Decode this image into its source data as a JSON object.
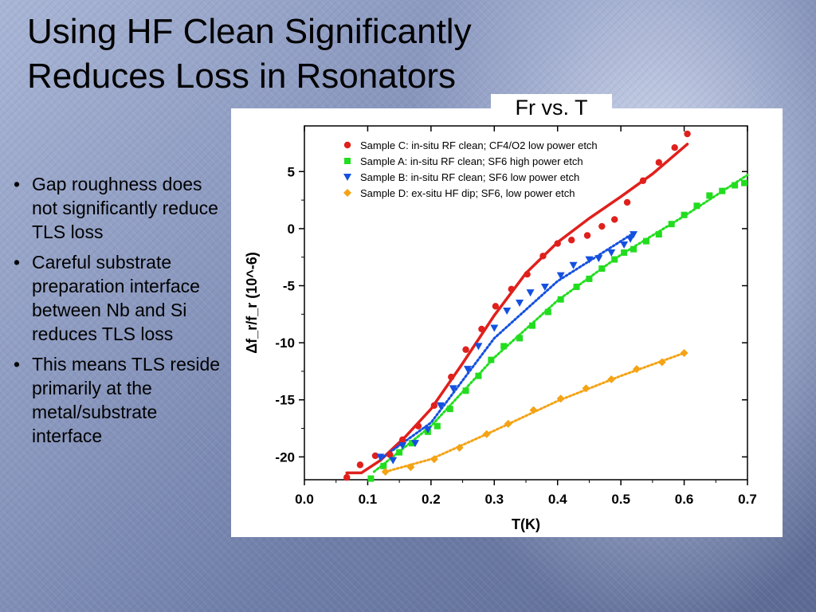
{
  "slide": {
    "title_line1": "Using HF Clean Significantly",
    "title_line2": "Reduces Loss in Rsonators",
    "chart_caption": "Fr vs. T",
    "bullets": [
      "Gap roughness does not significantly reduce TLS loss",
      "Careful substrate preparation interface between Nb and Si reduces TLS loss",
      "This means TLS reside primarily at the metal/substrate interface"
    ],
    "bullet_char": "•"
  },
  "colors": {
    "sample_c": "#e0201c",
    "sample_a": "#22dd1f",
    "sample_b": "#1450e0",
    "sample_d": "#f4a315"
  },
  "chart_data": {
    "type": "scatter",
    "xlabel": "T(K)",
    "ylabel": "Δf_r/f_r (10^-6)",
    "xlim": [
      0.0,
      0.7
    ],
    "ylim": [
      -22,
      9
    ],
    "x_ticks": [
      "0.0",
      "0.1",
      "0.2",
      "0.3",
      "0.4",
      "0.5",
      "0.6",
      "0.7"
    ],
    "y_ticks": [
      "5",
      "0",
      "-5",
      "-10",
      "-15",
      "-20"
    ],
    "legend_position": "top-left",
    "series": [
      {
        "key": "sample_c",
        "name": "Sample C: in-situ RF clean; CF4/O2 low power etch",
        "marker": "circle",
        "points": [
          [
            0.067,
            -21.8
          ],
          [
            0.088,
            -20.7
          ],
          [
            0.112,
            -19.9
          ],
          [
            0.135,
            -19.8
          ],
          [
            0.155,
            -18.5
          ],
          [
            0.18,
            -17.3
          ],
          [
            0.205,
            -15.5
          ],
          [
            0.232,
            -13.0
          ],
          [
            0.255,
            -10.6
          ],
          [
            0.28,
            -8.8
          ],
          [
            0.302,
            -6.8
          ],
          [
            0.327,
            -5.3
          ],
          [
            0.352,
            -4.0
          ],
          [
            0.377,
            -2.4
          ],
          [
            0.4,
            -1.3
          ],
          [
            0.422,
            -1.0
          ],
          [
            0.447,
            -0.6
          ],
          [
            0.47,
            0.2
          ],
          [
            0.49,
            0.8
          ],
          [
            0.51,
            2.3
          ],
          [
            0.535,
            4.2
          ],
          [
            0.56,
            5.8
          ],
          [
            0.585,
            7.1
          ],
          [
            0.605,
            8.3
          ]
        ],
        "fit": [
          [
            0.067,
            -21.4
          ],
          [
            0.09,
            -21.4
          ],
          [
            0.12,
            -20.3
          ],
          [
            0.16,
            -18.2
          ],
          [
            0.2,
            -15.8
          ],
          [
            0.25,
            -11.8
          ],
          [
            0.3,
            -7.6
          ],
          [
            0.35,
            -3.9
          ],
          [
            0.4,
            -1.2
          ],
          [
            0.45,
            0.9
          ],
          [
            0.5,
            2.8
          ],
          [
            0.55,
            4.8
          ],
          [
            0.605,
            7.4
          ]
        ]
      },
      {
        "key": "sample_a",
        "name": "Sample A: in-situ RF clean; SF6 high power etch",
        "marker": "square",
        "points": [
          [
            0.105,
            -21.9
          ],
          [
            0.125,
            -20.8
          ],
          [
            0.15,
            -19.6
          ],
          [
            0.17,
            -18.8
          ],
          [
            0.195,
            -17.8
          ],
          [
            0.21,
            -17.3
          ],
          [
            0.23,
            -15.8
          ],
          [
            0.255,
            -14.2
          ],
          [
            0.275,
            -12.9
          ],
          [
            0.295,
            -11.5
          ],
          [
            0.315,
            -10.3
          ],
          [
            0.34,
            -9.6
          ],
          [
            0.36,
            -8.5
          ],
          [
            0.385,
            -7.3
          ],
          [
            0.405,
            -6.2
          ],
          [
            0.43,
            -5.1
          ],
          [
            0.45,
            -4.4
          ],
          [
            0.47,
            -3.5
          ],
          [
            0.49,
            -2.7
          ],
          [
            0.505,
            -2.1
          ],
          [
            0.52,
            -1.8
          ],
          [
            0.54,
            -1.1
          ],
          [
            0.56,
            -0.5
          ],
          [
            0.58,
            0.4
          ],
          [
            0.6,
            1.2
          ],
          [
            0.62,
            2.0
          ],
          [
            0.64,
            2.9
          ],
          [
            0.66,
            3.3
          ],
          [
            0.68,
            3.8
          ],
          [
            0.695,
            4.0
          ]
        ],
        "fit": [
          [
            0.11,
            -21.3
          ],
          [
            0.2,
            -17.3
          ],
          [
            0.3,
            -11.3
          ],
          [
            0.4,
            -6.3
          ],
          [
            0.5,
            -2.3
          ],
          [
            0.6,
            1.1
          ],
          [
            0.7,
            4.7
          ]
        ]
      },
      {
        "key": "sample_b",
        "name": "Sample B: in-situ RF clean; SF6 low power etch",
        "marker": "triangle-down",
        "points": [
          [
            0.12,
            -20.0
          ],
          [
            0.14,
            -20.3
          ],
          [
            0.155,
            -19.0
          ],
          [
            0.175,
            -18.8
          ],
          [
            0.195,
            -17.6
          ],
          [
            0.215,
            -15.5
          ],
          [
            0.235,
            -14.0
          ],
          [
            0.258,
            -12.3
          ],
          [
            0.275,
            -10.3
          ],
          [
            0.3,
            -8.7
          ],
          [
            0.32,
            -7.2
          ],
          [
            0.34,
            -6.5
          ],
          [
            0.357,
            -5.6
          ],
          [
            0.38,
            -5.1
          ],
          [
            0.405,
            -4.1
          ],
          [
            0.425,
            -3.2
          ],
          [
            0.45,
            -2.7
          ],
          [
            0.465,
            -2.6
          ],
          [
            0.485,
            -2.1
          ],
          [
            0.505,
            -1.4
          ],
          [
            0.515,
            -0.9
          ],
          [
            0.52,
            -0.5
          ]
        ],
        "fit": [
          [
            0.12,
            -20.2
          ],
          [
            0.2,
            -17.0
          ],
          [
            0.3,
            -9.6
          ],
          [
            0.4,
            -4.6
          ],
          [
            0.52,
            -0.4
          ]
        ]
      },
      {
        "key": "sample_d",
        "name": "Sample D: ex-situ HF dip; SF6, low power etch",
        "marker": "diamond",
        "points": [
          [
            0.128,
            -21.3
          ],
          [
            0.168,
            -20.9
          ],
          [
            0.205,
            -20.2
          ],
          [
            0.245,
            -19.2
          ],
          [
            0.288,
            -18.0
          ],
          [
            0.322,
            -17.1
          ],
          [
            0.362,
            -15.9
          ],
          [
            0.405,
            -14.9
          ],
          [
            0.445,
            -14.0
          ],
          [
            0.485,
            -13.2
          ],
          [
            0.525,
            -12.3
          ],
          [
            0.565,
            -11.7
          ],
          [
            0.6,
            -10.9
          ]
        ],
        "fit": [
          [
            0.128,
            -21.3
          ],
          [
            0.2,
            -20.2
          ],
          [
            0.3,
            -17.7
          ],
          [
            0.4,
            -15.1
          ],
          [
            0.5,
            -12.9
          ],
          [
            0.6,
            -10.9
          ]
        ]
      }
    ]
  }
}
